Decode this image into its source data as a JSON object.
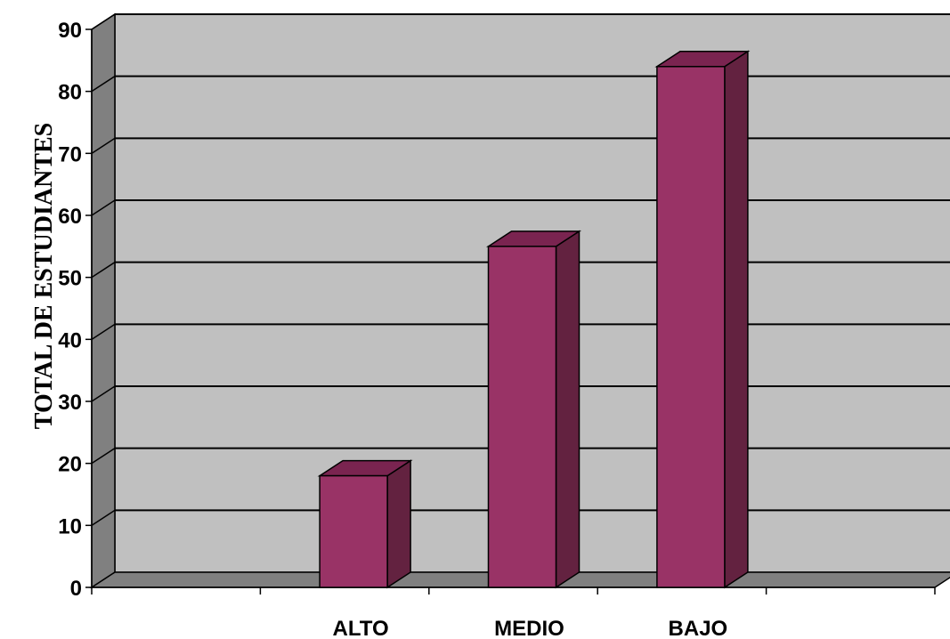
{
  "chart_data": {
    "type": "bar",
    "categories": [
      "",
      "ALTO",
      "MEDIO",
      "BAJO",
      ""
    ],
    "values": [
      null,
      18,
      55,
      84,
      null
    ],
    "title": "",
    "xlabel": "",
    "ylabel": "TOTAL  DE  ESTUDIANTES",
    "ylim": [
      0,
      90
    ],
    "yticks": [
      "0",
      "10",
      "20",
      "30",
      "40",
      "50",
      "60",
      "70",
      "80",
      "90"
    ],
    "grid": true,
    "legend": "none",
    "colors": {
      "bar_front": "#993366",
      "bar_top": "#7a2450",
      "bar_side": "#632240",
      "back_wall": "#c0c0c0",
      "side_wall": "#808080",
      "floor": "#808080"
    }
  }
}
